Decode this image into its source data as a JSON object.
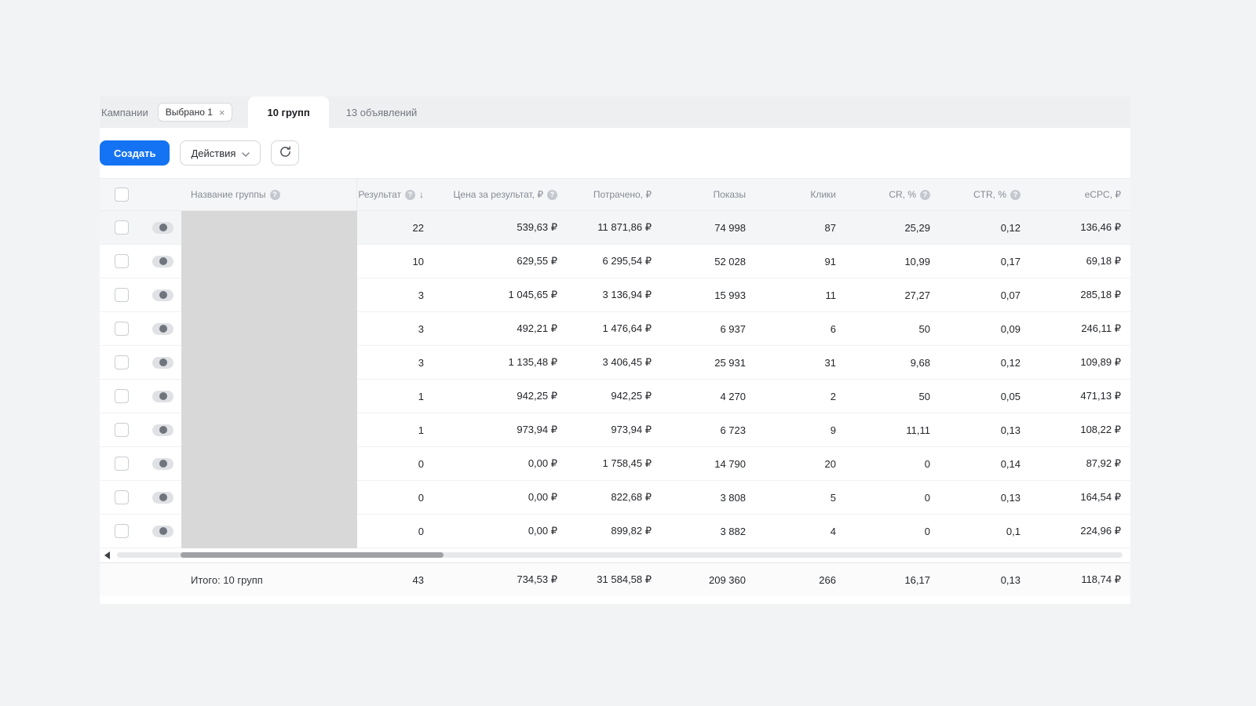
{
  "colors": {
    "accent": "#1473f2"
  },
  "tabs": {
    "campaigns": "Кампании",
    "selected_chip": "Выбрано 1",
    "chip_close": "×",
    "groups": "10 групп",
    "ads": "13 объявлений"
  },
  "toolbar": {
    "create": "Создать",
    "actions": "Действия"
  },
  "table": {
    "highlight_row": 0,
    "columns": [
      {
        "key": "name",
        "label": "Название группы",
        "help": true,
        "sort": null,
        "align": "left"
      },
      {
        "key": "result",
        "label": "Результат",
        "help": true,
        "sort": "desc",
        "align": "right"
      },
      {
        "key": "price",
        "label": "Цена за результат, ₽",
        "help": true,
        "sort": null,
        "align": "right"
      },
      {
        "key": "spent",
        "label": "Потрачено, ₽",
        "help": false,
        "sort": null,
        "align": "right"
      },
      {
        "key": "shows",
        "label": "Показы",
        "help": false,
        "sort": null,
        "align": "right"
      },
      {
        "key": "clicks",
        "label": "Клики",
        "help": false,
        "sort": null,
        "align": "right"
      },
      {
        "key": "cr",
        "label": "CR, %",
        "help": true,
        "sort": null,
        "align": "right"
      },
      {
        "key": "ctr",
        "label": "CTR, %",
        "help": true,
        "sort": null,
        "align": "right"
      },
      {
        "key": "ecpc",
        "label": "eCPC, ₽",
        "help": false,
        "sort": null,
        "align": "right"
      }
    ],
    "rows": [
      {
        "result": "22",
        "price": "539,63 ₽",
        "spent": "11 871,86 ₽",
        "shows": "74 998",
        "clicks": "87",
        "cr": "25,29",
        "ctr": "0,12",
        "ecpc": "136,46 ₽"
      },
      {
        "result": "10",
        "price": "629,55 ₽",
        "spent": "6 295,54 ₽",
        "shows": "52 028",
        "clicks": "91",
        "cr": "10,99",
        "ctr": "0,17",
        "ecpc": "69,18 ₽"
      },
      {
        "result": "3",
        "price": "1 045,65 ₽",
        "spent": "3 136,94 ₽",
        "shows": "15 993",
        "clicks": "11",
        "cr": "27,27",
        "ctr": "0,07",
        "ecpc": "285,18 ₽"
      },
      {
        "result": "3",
        "price": "492,21 ₽",
        "spent": "1 476,64 ₽",
        "shows": "6 937",
        "clicks": "6",
        "cr": "50",
        "ctr": "0,09",
        "ecpc": "246,11 ₽"
      },
      {
        "result": "3",
        "price": "1 135,48 ₽",
        "spent": "3 406,45 ₽",
        "shows": "25 931",
        "clicks": "31",
        "cr": "9,68",
        "ctr": "0,12",
        "ecpc": "109,89 ₽"
      },
      {
        "result": "1",
        "price": "942,25 ₽",
        "spent": "942,25 ₽",
        "shows": "4 270",
        "clicks": "2",
        "cr": "50",
        "ctr": "0,05",
        "ecpc": "471,13 ₽"
      },
      {
        "result": "1",
        "price": "973,94 ₽",
        "spent": "973,94 ₽",
        "shows": "6 723",
        "clicks": "9",
        "cr": "11,11",
        "ctr": "0,13",
        "ecpc": "108,22 ₽"
      },
      {
        "result": "0",
        "price": "0,00 ₽",
        "spent": "1 758,45 ₽",
        "shows": "14 790",
        "clicks": "20",
        "cr": "0",
        "ctr": "0,14",
        "ecpc": "87,92 ₽"
      },
      {
        "result": "0",
        "price": "0,00 ₽",
        "spent": "822,68 ₽",
        "shows": "3 808",
        "clicks": "5",
        "cr": "0",
        "ctr": "0,13",
        "ecpc": "164,54 ₽"
      },
      {
        "result": "0",
        "price": "0,00 ₽",
        "spent": "899,82 ₽",
        "shows": "3 882",
        "clicks": "4",
        "cr": "0",
        "ctr": "0,1",
        "ecpc": "224,96 ₽"
      }
    ],
    "totals": {
      "label": "Итого: 10 групп",
      "result": "43",
      "price": "734,53 ₽",
      "spent": "31 584,58 ₽",
      "shows": "209 360",
      "clicks": "266",
      "cr": "16,17",
      "ctr": "0,13",
      "ecpc": "118,74 ₽"
    }
  }
}
